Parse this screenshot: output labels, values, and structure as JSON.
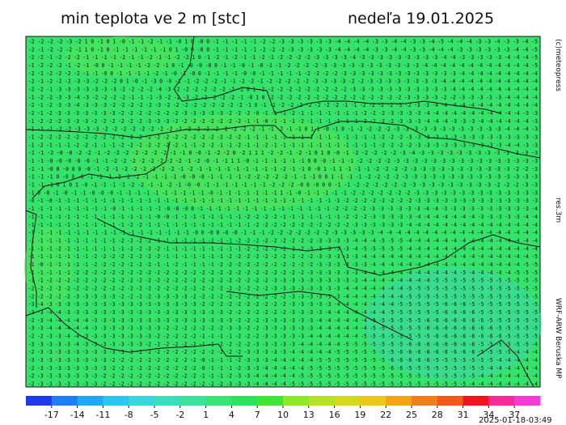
{
  "header": {
    "title": "min teplota ve 2 m [stc]",
    "date": "nedeľa 19.01.2025"
  },
  "side": {
    "copyright": "(c)meteopress",
    "resolution": "res.3m",
    "model": "WRF-ARW Beruska MP"
  },
  "map": {
    "grid_rows": [
      "-2 -2 -2 -2 -3 -2 1 0 -1 0 1 -0 -1 -1 -2 -1 -1 -0 1 0 -0 0 -1 -1 -1 -1 -1 -2 -2 -3 -3 -3 -3 -3 -3 -4 -4 -4 -4 -3 -3 -4 -4 -3 -3 -4 -5 -4 -4 -4 -3 -3 -4 -3 -3 -4 -5",
      "-2 -1 -2 -2 -2 -1 1 0 -1 0 -1 -1 -1 -1 -1 -1 0 1 -0 0 -0 0 -1 -1 -1 -1 -1 -2 -2 -2 -3 -3 -3 -3 -3 -4 -4 -4 -4 -3 -3 -4 -4 -3 -3 -4 -4 -4 -3 -3 -3 -3 -3 -3 -4 -4 -5",
      "-2 -2 -1 -2 -2 -2 -1 -1 -1 -1 -2 -1 -1 -2 -1 -1 -2 -2 1 0 -1 -2 -1 -2 -1 -1 -2 -1 -2 -2 -2 -2 -3 -3 -3 -3 -4 -3 -3 -3 -3 -3 -3 -3 -3 -3 -4 -4 -3 -3 -3 -3 -3 -4 -4 -4 -5",
      "-1 -2 -2 -2 -1 -2 -1 -0 0 -1 -1 -1 -1 -2 -2 -1 0 -1 -0 -0 -0 0 -1 -1 -0 -1 -0 -1 -1 -2 -2 -2 -2 -3 -3 -3 -3 -3 -3 -3 -3 -3 -3 -3 -4 -4 -4 -4 -4 -4 -4 -4 -4 -4 -4 -4 -5",
      "-2 -1 -2 -2 -2 -2 -1 -1 -0 0 -1 -1 -1 -1 -2 -1 -0 -1 -0 0 -1 -1 -1 -1 -0 -0 -1 -1 -1 -1 -1 -2 -2 -2 -2 -3 -3 -3 -3 -3 -3 -3 -3 -3 -3 -3 -3 -3 -4 -4 -4 -4 -4 -4 -4 -4 -4",
      "-2 -1 -2 -2 -2 -3 -3 -2 -2 -2 0 1 -0 -1 -3 0 -0 -1 -1 -2 -2 -2 -1 -1 -2 -2 -1 -2 -2 -2 -2 -2 -3 -3 -3 -3 -2 -2 -3 -3 -3 -3 -3 -3 -3 -3 -4 -4 -4 -4 -4 -4 -4 -4 -4 -4 -4",
      "-2 -2 -1 -3 -3 -3 -3 -3 -3 -3 -2 -2 -2 -2 -4 -3 -2 -2 -2 -2 -2 -2 -2 -2 0 1 -2 -2 -2 -2 -2 -2 -2 -2 -2 -2 -3 -3 -3 -3 -3 -3 -3 -3 -3 -3 -3 -4 -4 -4 -4 -4 -4 -4 -4 -4 -4",
      "-1 -2 -2 -3 -3 -4 -3 -2 -2 -2 -2 -1 -1 -1 -3 -2 -2 -3 -2 -2 -2 -2 -2 -1 -0 1 0 -2 -2 -2 -2 -2 -2 -2 -2 -2 -2 -2 -2 -2 -2 -2 -3 -3 -3 -3 -2 -2 -3 -3 -3 -3 -3 -4 -4 -4 -4",
      "-2 -1 -2 -3 -3 -4 -3 -3 -3 -2 -2 -2 -2 -2 -3 -2 -2 -2 -2 -2 -2 -2 -2 -2 -1 0 -1 -1 -2 -2 -2 -2 -2 -2 -2 -1 -1 -2 -2 -2 -2 -3 -2 -3 -3 -4 -4 -4 -4 -4 -4 -4 -4 -4 -4 -4 -4",
      "-2 -1 -2 -3 -3 -3 -3 -3 -3 -3 -2 -2 -2 -2 -2 -2 -2 -3 -3 -3 -3 -3 -2 -2 -2 -0 -1 -1 -1 -2 -1 -1 -1 -1 -1 -1 -1 -2 -2 -2 -3 -3 -3 -3 -4 -4 -4 -4 -4 -4 -4 -4 -4 -4 -4 -3 -3",
      "-1 -2 -2 -2 -3 -3 -3 -2 -2 -2 -2 -2 -2 -3 -3 -3 -2 -2 -2 -2 -2 -2 -2 -2 -1 -1 -0 -1 -1 -1 -2 -1 -1 -1 -1 -1 -1 -2 -2 -2 -2 -3 -3 -3 -4 -4 -4 -3 -3 -3 -4 -4 -4 -4 -4 -4 -3",
      "-1 -1 -1 -2 -2 -3 -3 -3 -2 -2 -2 -2 -2 -2 -2 -2 -2 -2 -2 -2 -2 -2 -2 -2 -2 -1 -1 -2 -1 -1 0 1 1 -0 -1 0 -1 -2 -2 -2 -2 -3 -3 -3 -3 -3 -3 -3 -3 -3 -3 -3 -3 -4 -4 -4 -3",
      "-1 -2 -2 -2 -2 -2 -2 -2 -2 -2 -2 -2 -2 -2 -2 -2 -2 -2 -2 -2 -2 -2 -2 -2 -1 -1 -1 -1 -1 -1 -1 -1 -1 -1 -1 -1 -1 -1 -1 -2 -2 -2 -3 -3 -3 -3 -3 -3 -3 -3 -3 -3 -3 -3 -3 -3 -3",
      "-1 -2 -1 -1 -1 -2 -2 -1 -1 -1 -2 -2 -2 -2 -2 -2 -2 -1 -1 -2 -2 -1 -1 -2 -1 -1 -2 -1 -1 -1 -1 -1 -1 -1 -1 -1 -1 -1 -1 -2 -2 -2 -2 -3 -3 -3 -3 -3 -3 -3 -3 -3 -3 -4 -4 -3 -3",
      "-1 -1 -2 -0 -0 -2 -2 -1 -2 -2 -2 -2 -2 -2 -2 -1 -1 0 -0 -1 -2 -2 0 -2 1 1 1 -2 -2 -1 -2 -1 0 1 0 -0 -1 -2 -2 -2 -2 -2 -3 -4 -3 -3 -3 -3 -3 -3 -3 -3 -3 -3 -3 -3 -3",
      "-1 -1 -0 -0 -0 -0 -0 -1 -1 -2 -2 -2 -2 -2 -2 -2 -2 -1 -2 -0 -1 -1 1 1 -0 -1 -1 -1 -1 -1 -1 0 0 -0 -1 -1 -1 -2 -2 -2 -2 -3 -3 -3 -3 -3 -3 -3 -3 -3 -3 -3 -3 -3 -3 -3 -3",
      "-1 -1 -0 0 -0 0 0 -0 -1 -2 -1 -2 -2 -2 -2 -2 -2 -1 -2 -1 -1 -1 -1 -1 -1 -1 -1 -1 -2 -1 -1 0 -0 1 -1 1 -1 -1 -1 -2 -2 -2 -2 -3 -3 -3 -3 -3 -3 -3 -3 -3 -3 -3 -2 -2 -3",
      "-1 -1 -1 0 -0 0 -0 -1 -1 -1 -2 -2 -2 -1 -1 -1 -1 -0 -0 -0 -1 -1 -1 -1 -2 -2 -2 -2 -2 -1 -1 -1 0 0 1 -1 -1 -1 -2 -2 -2 -2 -3 -3 -3 -3 -3 -3 -3 -3 -3 -3 -3 -3 -3 -3 -3",
      "-1 -1 -1 0 1 0 1 -0 -1 -1 -1 -1 -2 -2 -1 -1 -2 -1 -0 -0 -1 -1 -1 -1 -1 -1 -1 -2 -2 -2 -0 0 -0 0 0 -1 -1 -2 -2 -2 -2 -2 -2 -3 -3 -3 -3 -3 -3 -3 -3 -3 -2 -2 -2 -3 -3",
      "-1 0 -0 -1 -0 -1 -1 -0 -0 -0 -1 -1 -1 -1 -1 -1 -1 -1 -1 -1 -0 -1 -1 -1 -1 -1 -1 -1 1 -1 -0 -1 -1 -1 -1 -1 -2 -2 -2 -2 -2 -2 -2 -3 -3 -3 -3 -3 -3 -3 -3 -3 -3 -3 -3 -3 -3",
      "-0 -1 -0 -1 -1 -1 -1 -1 -1 -1 -1 -1 -1 -1 -1 -1 -1 -1 -1 -1 -1 -1 -1 -1 -1 -1 -1 -1 -1 -1 -1 -1 -1 -1 -1 -2 -2 -2 -2 -2 -2 -2 -2 -3 -3 -3 -3 -3 -3 -3 -3 -3 -3 -3 -3 -3 -3",
      "-1 -1 -1 -1 -1 -1 -1 -1 -1 -0 -1 -1 -1 -1 -1 -0 -0 -0 0 -1 -1 -1 -1 -1 -1 -1 -1 -1 -1 -1 -1 -1 -1 -1 -2 -2 -2 -2 -3 -3 -3 -3 -3 -3 -4 -4 -3 -3 -3 -3 -3 -3 -3 -3 -3 -3 -4",
      "-1 -1 -1 -1 -1 -1 -1 -1 -1 -1 -1 -1 -1 -1 -0 -0 -1 -1 -1 -1 -1 -1 -1 -1 -2 -2 -2 -2 -1 -1 -1 -1 -1 -1 -1 -2 -2 -2 -3 -3 -3 -3 -3 -4 -4 -4 -4 -4 -4 -4 -3 -3 -3 -3 -3 -4 -4",
      "-1 -1 -1 -1 -1 -1 -1 -1 -1 -1 -1 -2 -2 -1 -1 -1 -1 -1 -1 -1 -1 -1 -1 -1 -1 -2 -2 -2 -2 -2 -2 -2 -2 -2 -2 -2 -3 -3 -3 -3 -3 -3 -4 -4 -4 -4 -4 -4 -4 -4 -4 -4 -4 -4 -4 -4 -4",
      "-1 -1 -1 -1 -1 -1 -1 -1 -1 -1 -1 -1 -1 -1 -1 -1 -1 -1 -0 0 -0 0 -0 -0 -1 -1 -1 -2 -2 -2 -2 -2 -2 -2 -3 -3 -3 -3 -3 -4 -4 -4 -4 -4 -4 -4 -4 -4 -4 -4 -4 -4 -4 -4 -4 -4 -4",
      "-1 -1 -1 -1 -1 -1 -1 -1 -1 -1 -2 -2 -2 -2 -1 -1 -1 -1 -1 -1 -1 -1 -1 -2 -2 -2 -2 -2 -2 -2 -2 -2 -3 -3 -3 -3 -4 -4 -4 -5 -5 -5 -4 -4 -4 -4 -4 -4 -4 -4 -4 -4 -4 -4 -4 -4 -4",
      "-1 -1 -1 -2 -1 -1 -1 -1 -1 -1 -1 -2 -2 -2 -2 -1 -1 -1 -1 -1 -1 -1 -1 -1 -2 -2 -2 -2 -2 -2 -2 -3 -3 -3 -3 -3 -4 -5 -5 -5 -5 -5 -4 -4 -4 -4 -4 -4 -4 -4 -4 -4 -4 -4 -4 -4 -4",
      "-1 -1 -1 -1 -1 -1 -1 -2 -2 -2 -2 -2 -2 -2 -2 -1 -1 -1 -1 -1 -1 -1 -2 -2 -2 -2 -2 -2 -2 -2 -2 -2 -3 -3 -3 -3 -3 -4 -4 -4 -4 -4 -4 -4 -4 -4 -4 -4 -4 -4 -4 -4 -4 -4 -4 -4 -5",
      "-1 -0 -1 -1 -1 -1 -1 -2 -2 -2 -2 -2 -2 -2 -1 -1 -2 -1 -1 -1 -1 -2 -2 -2 -2 -2 -2 -2 -2 -2 -2 -2 -3 -3 -3 -3 -3 -3 -4 -4 -4 -4 -4 -4 -4 -4 -4 -4 -4 -4 -4 -4 -4 -4 -4 -5 -5",
      "-1 -1 -1 -1 -1 -2 -2 -2 -2 -2 -2 -2 -2 -2 -2 -2 -2 -2 -2 -2 -2 -2 -2 -2 -2 -2 -2 -2 -2 -2 -2 -3 -3 -3 -3 -3 -3 -4 -4 -4 -4 -4 -4 -4 -4 -4 -4 -4 -5 -4 -4 -4 -4 -4 -5 -5 -5",
      "-1 -1 -2 -2 -2 -2 -2 -2 -2 -2 -2 -2 -2 -2 -2 -2 -2 -2 -2 -2 -2 -2 -2 -2 -2 -2 -2 -3 -3 -3 -3 -3 -3 -3 -3 -3 -3 -4 -4 -4 -4 -4 -4 -4 -4 -5 -5 -5 -5 -5 -5 -5 -5 -5 -5 -5 -5",
      "-2 -2 -2 -2 -2 -2 -2 -2 -2 -2 -2 -2 -2 -2 -2 -2 -2 -2 -2 -2 -2 -2 -2 -2 -2 -2 -2 -3 -3 -3 -3 -3 -3 -3 -3 -4 -4 -4 -4 -4 -4 -4 -5 -5 -5 -5 -5 -5 -5 -5 -5 -5 -5 -5 -5 -5 -5",
      "-2 -2 -2 -2 -2 -3 -3 -3 -3 -3 -2 -2 -2 -2 -3 -3 -3 -3 -2 -2 -2 -2 -2 -2 -2 -2 -2 -2 -2 -3 -3 -3 -3 -3 -3 -4 -4 -4 -4 -4 -4 -4 -5 -5 -5 -5 -5 -5 -5 -5 -5 -5 -5 -5 -5 -5 -5",
      "-3 -4 -3 -3 -3 -3 -3 -3 -3 -3 -3 -3 -3 -3 -3 -3 -3 -3 -3 -2 -2 -2 -2 -2 -2 -2 -2 -2 -2 -3 -3 -3 -3 -3 -4 -4 -4 -4 -4 -4 -4 -5 -5 -5 -5 -5 -6 -6 -6 -5 -5 -5 -5 -5 -5 -5 -5",
      "-3 -3 -4 -4 -3 -3 -3 -3 -3 -3 -3 -3 -3 -3 -3 -3 -3 -3 -3 -3 -3 -3 -2 -2 -2 -2 -2 -2 -2 -3 -3 -3 -3 -4 -4 -4 -4 -4 -4 -4 -5 -5 -5 -5 -5 -5 -6 -6 -6 -6 -5 -5 -5 -5 -5 -5 -5",
      "-2 -3 -4 -4 -4 -4 -4 -3 -3 -3 -3 -3 -3 -3 -3 -3 -3 -3 -3 -3 -3 -3 -3 -2 -2 -2 -3 -3 -3 -3 -3 -3 -4 -4 -4 -4 -4 -4 -5 -5 -5 -5 -5 -5 -6 -6 -6 -6 -6 -6 -6 -5 -5 -5 -5 -5 -5",
      "-3 -3 -4 -4 -4 -4 -4 -3 -3 -3 -3 -3 -3 -3 -3 -2 -2 -2 -2 -2 -2 -2 -3 -3 -2 -2 -3 -3 -3 -3 -3 -3 -4 -4 -4 -4 -4 -4 -5 -5 -5 -5 -5 -5 -6 -6 -6 -6 -6 -6 -6 -6 -5 -5 -5 -5 -5",
      "-2 -2 -3 -3 -4 -4 -3 -3 -3 -3 -3 -3 -3 -3 -2 -2 -2 -2 -2 -1 -1 -1 -1 -2 -2 -2 -3 -3 -3 -3 -3 -4 -4 -4 -4 -4 -4 -5 -5 -5 -5 -5 -5 -5 -5 -6 -6 -6 -6 -6 -6 -6 -6 -5 -5 -5 -5",
      "-3 -3 -3 -3 -3 -4 -3 -3 -3 -3 -3 -3 -3 -2 -2 -2 -2 -2 -2 -1 -1 -2 -2 -2 -2 -3 -3 -3 -3 -3 -4 -4 -4 -4 -4 -5 -5 -5 -5 -5 -5 -5 -6 -6 -6 -6 -6 -6 -6 -6 -5 -5 -5 -5 -5 -5 -4",
      "-2 -3 -3 -3 -3 -3 -3 -3 -3 -3 -3 -3 -2 -2 -2 -2 -2 -2 -2 -2 -2 -2 -2 -2 -3 -3 -3 -3 -3 -4 -4 -4 -4 -4 -5 -5 -5 -5 -5 -5 -5 -6 -6 -6 -6 -6 -6 -6 -6 -6 -5 -5 -5 -5 -4 -4 -4",
      "-3 -3 -3 -3 -3 -3 -3 -3 -3 -2 -2 -2 -2 -2 -2 -2 -2 -2 -2 -0 -1 -1 -1 -2 -3 -3 -3 -4 -4 -4 -4 -4 -5 -5 -5 -5 -5 -5 -5 -5 -6 -6 -6 -6 -6 -5 -5 -5 -5 -5 -5 -5 -4 -4 -4 -4 -4",
      "-2 -3 -3 -3 -3 -3 -3 -3 -3 -2 -2 -2 -2 -2 -2 -2 -2 -2 -2 -0 -1 -1 -1 -2 -3 -3 -4 -4 -4 -4 -4 -5 -5 -5 -5 -5 -5 -5 -5 -5 -6 -6 -5 -5 -5 -5 -5 -5 -5 -5 -5 -4 -4 -4 -4 -4 -4",
      "-2 -3 -3 -3 -3 -3 -3 -3 -2 -2 -2 -2 -2 -2 -2 -2 -2 -2 -2 -1 -1 -1 -2 -3 -3 -4 -4 -4 -4 -4 -5 -5 -5 -5 -5 -5 -5 -5 -5 -5 -5 -5 -5 -5 -5 -5 -5 -5 -5 -5 -4 -4 -4 -4 -4 -4 -4",
      "-2 -3 -3 -3 -3 -3 -3 -3 -2 -2 -2 -2 -2 -2 -2 -2 -2 -2 -2 -2 -2 -2 -3 -3 -3 -4 -4 -4 -4 -5 -5 -5 -5 -5 -5 -5 -5 -5 -5 -5 -5 -5 -5 -5 -5 -5 -5 -5 -5 -4 -4 -4 -4 -4 -4 -4 -4"
    ]
  },
  "colorbar": {
    "labels": [
      -17,
      -14,
      -11,
      -8,
      -5,
      -2,
      1,
      4,
      7,
      10,
      13,
      16,
      19,
      22,
      25,
      28,
      31,
      34,
      37
    ],
    "colors": [
      "#1f3be6",
      "#1f7ef2",
      "#22a7f5",
      "#2cc6ee",
      "#3ad6dc",
      "#3ddcbc",
      "#3ee09a",
      "#3ce274",
      "#2fe25a",
      "#3fe63a",
      "#8ee82c",
      "#b4e226",
      "#d6d820",
      "#ecc81c",
      "#f4a41a",
      "#f47e1a",
      "#f25a1c",
      "#f0141e",
      "#f42c9a",
      "#f43cd6"
    ]
  },
  "footer": {
    "timestamp": "2025-01-18-03:49"
  }
}
